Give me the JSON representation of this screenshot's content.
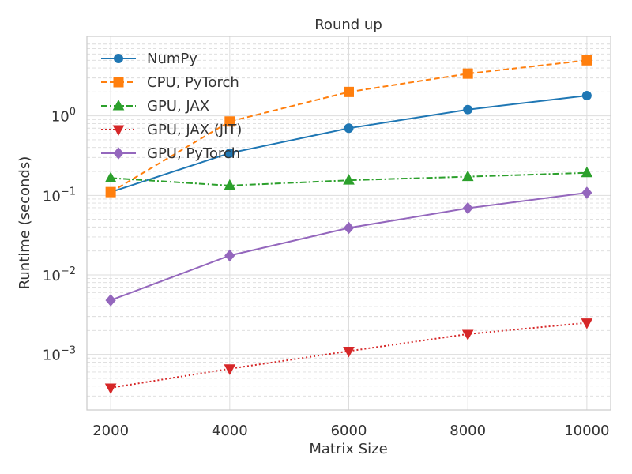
{
  "chart_data": {
    "type": "line",
    "title": "Round up",
    "xlabel": "Matrix Size",
    "ylabel": "Runtime (seconds)",
    "y_scale": "log",
    "grid": true,
    "legend_position": "top-left",
    "xlim": [
      1600,
      10400
    ],
    "ylim": [
      0.0002,
      10
    ],
    "x_ticks": [
      2000,
      4000,
      6000,
      8000,
      10000
    ],
    "y_ticks": [
      {
        "value": 0.001,
        "base": "10",
        "exp": "−3"
      },
      {
        "value": 0.01,
        "base": "10",
        "exp": "−2"
      },
      {
        "value": 0.1,
        "base": "10",
        "exp": "−1"
      },
      {
        "value": 1,
        "base": "10",
        "exp": "0"
      }
    ],
    "x": [
      2000,
      4000,
      6000,
      8000,
      10000
    ],
    "series": [
      {
        "name": "NumPy",
        "values": [
          0.11,
          0.34,
          0.7,
          1.2,
          1.8
        ],
        "color": "#1f77b4",
        "dash": "solid",
        "marker": "circle"
      },
      {
        "name": "CPU, PyTorch",
        "values": [
          0.11,
          0.85,
          2.0,
          3.4,
          5.0
        ],
        "color": "#ff7f0e",
        "dash": "dashed",
        "marker": "square"
      },
      {
        "name": "GPU, JAX",
        "values": [
          0.165,
          0.133,
          0.155,
          0.172,
          0.192
        ],
        "color": "#2ca02c",
        "dash": "dashdot",
        "marker": "triangle-up"
      },
      {
        "name": "GPU, JAX (JIT)",
        "values": [
          0.00038,
          0.00066,
          0.0011,
          0.0018,
          0.0025
        ],
        "color": "#d62728",
        "dash": "dotted",
        "marker": "triangle-down"
      },
      {
        "name": "GPU, PyTorch",
        "values": [
          0.0048,
          0.0175,
          0.039,
          0.069,
          0.108
        ],
        "color": "#9467bd",
        "dash": "solid",
        "marker": "diamond"
      }
    ]
  }
}
